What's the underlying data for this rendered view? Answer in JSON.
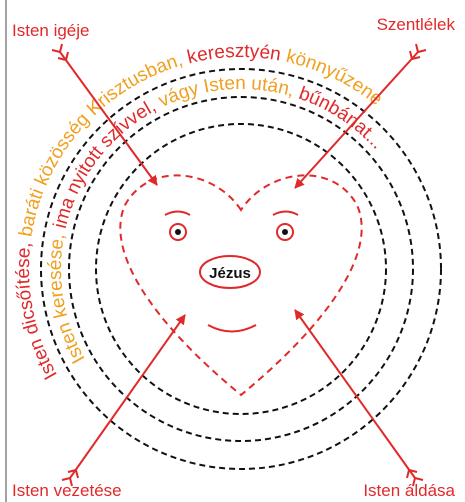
{
  "labels": {
    "top_left": "Isten igéje",
    "top_right": "Szentlélek",
    "bottom_left": "Isten vezetése",
    "bottom_right": "Isten áldása"
  },
  "center": "Jézus",
  "outer_ring": [
    "Isten dicsőítése,",
    "baráti közösség Krisztusban,",
    "keresztyén",
    "könnyűzene"
  ],
  "inner_ring": [
    "Isten keresése,",
    "ima nyitott szívvel,",
    "vágy Isten után,",
    "bűnbánat..."
  ]
}
